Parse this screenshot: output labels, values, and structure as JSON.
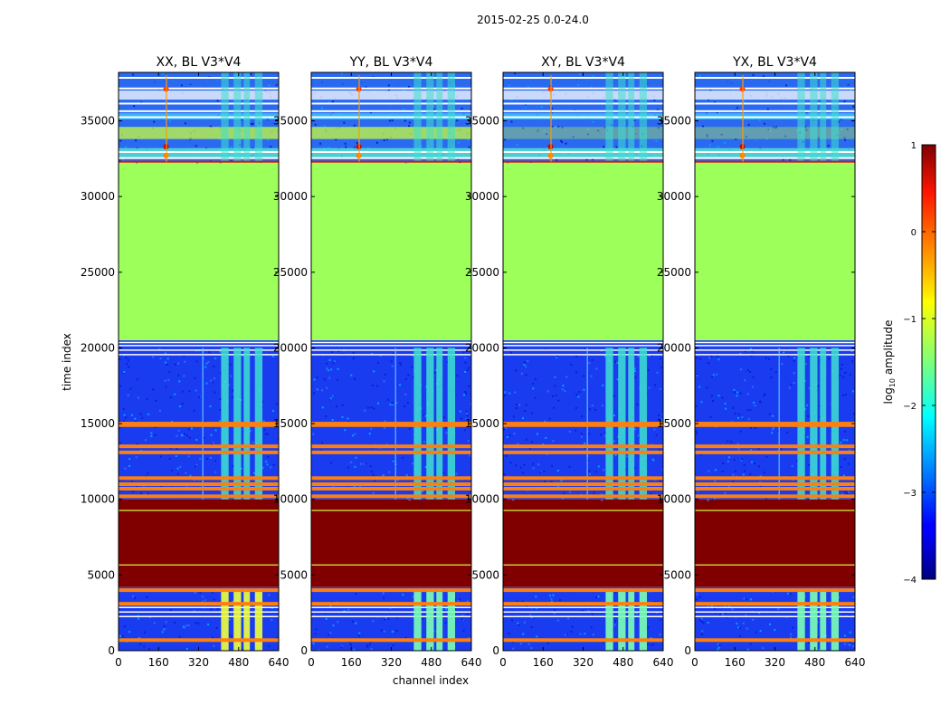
{
  "suptitle": "2015-02-25 0.0-24.0",
  "chart_data": {
    "type": "heatmap",
    "title": "2015-02-25 0.0-24.0",
    "xlabel": "channel index",
    "ylabel": "time index",
    "xlim": [
      0,
      640
    ],
    "ylim": [
      0,
      38200
    ],
    "xticks": [
      0,
      160,
      320,
      480,
      640
    ],
    "yticks": [
      0,
      5000,
      10000,
      15000,
      20000,
      25000,
      30000,
      35000
    ],
    "colorbar": {
      "label": "log10 amplitude",
      "label_base": "log",
      "label_sub": "10",
      "label_rest": " amplitude",
      "range": [
        -4,
        1
      ],
      "ticks": [
        1,
        0,
        -1,
        -2,
        -3,
        -4
      ],
      "tick_labels": [
        "1",
        "0",
        "−1",
        "−2",
        "−3",
        "−4"
      ]
    },
    "colors": {
      "background_noise": "#1a3cf0",
      "flagged_block": "#800000",
      "fill_block": "#9cff5a",
      "rfi_line": "#ff7f0e",
      "band_signal": "#40e0d0"
    },
    "panels": [
      {
        "title": "XX, BL V3*V4",
        "pol": "XX",
        "baseline": "V3*V4"
      },
      {
        "title": "YY, BL V3*V4",
        "pol": "YY",
        "baseline": "V3*V4"
      },
      {
        "title": "XY, BL V3*V4",
        "pol": "XY",
        "baseline": "V3*V4"
      },
      {
        "title": "YX, BL V3*V4",
        "pol": "YX",
        "baseline": "V3*V4"
      }
    ],
    "regions": [
      {
        "name": "early-noise",
        "t0": 0,
        "t1": 4000,
        "value": -3.3
      },
      {
        "name": "flagged-block",
        "t0": 4200,
        "t1": 10000,
        "value": 1.0
      },
      {
        "name": "mid-noise",
        "t0": 10000,
        "t1": 20000,
        "value": -3.3
      },
      {
        "name": "constant-fill",
        "t0": 20500,
        "t1": 32300,
        "value": -1.1
      },
      {
        "name": "late-noise",
        "t0": 32300,
        "t1": 38200,
        "value": -2.5
      }
    ],
    "rfi_time_lines": [
      700,
      3100,
      4000,
      10200,
      10700,
      11000,
      11400,
      13100,
      13500,
      14900,
      15000
    ]
  }
}
